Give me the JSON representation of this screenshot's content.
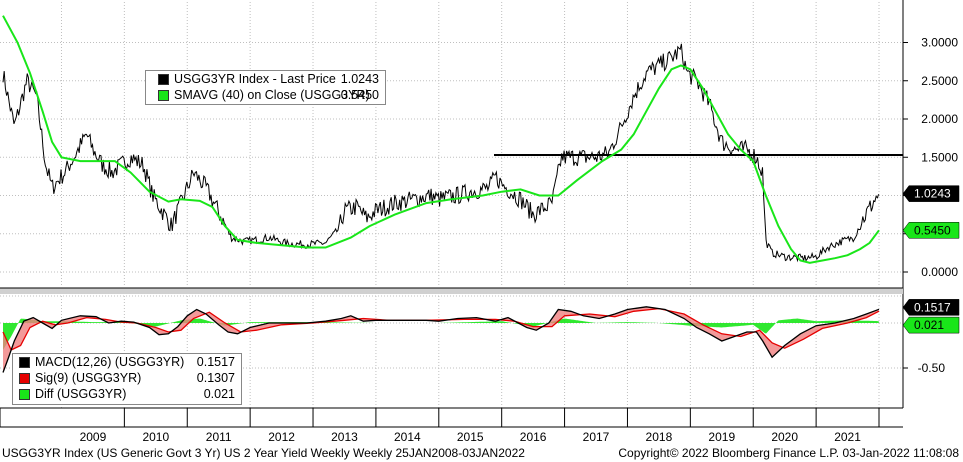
{
  "legend_main": {
    "items": [
      {
        "label": "USGG3YR Index  - Last Price",
        "value": "1.0243",
        "color": "#000000"
      },
      {
        "label": "SMAVG (40)  on Close (USGG3YR)",
        "value": "0.5450",
        "color": "#19e619"
      }
    ]
  },
  "legend_macd": {
    "items": [
      {
        "label": "MACD(12,26) (USGG3YR)",
        "value": "0.1517",
        "color": "#000000"
      },
      {
        "label": "Sig(9) (USGG3YR)",
        "value": "0.1307",
        "color": "#e60000"
      },
      {
        "label": "Diff (USGG3YR)",
        "value": "0.021",
        "color": "#19e619"
      }
    ]
  },
  "footer": {
    "left": "USGG3YR Index (US Generic Govt 3 Yr) US 2 Year Yield Weekly  Weekly 25JAN2008-03JAN2022",
    "right": "Copyright© 2022 Bloomberg Finance L.P.   03-Jan-2022 11:08:08"
  },
  "chart_data": [
    {
      "type": "line",
      "x_labels": [
        "2009",
        "2010",
        "2011",
        "2012",
        "2013",
        "2014",
        "2015",
        "2016",
        "2017",
        "2018",
        "2019",
        "2020",
        "2021"
      ],
      "ylim": [
        -0.15,
        3.4
      ],
      "y_ticks": [
        "3.0000",
        "2.5000",
        "2.0000",
        "1.5000",
        "1.0000",
        "0.5000",
        "0.0000"
      ],
      "reference_line": 1.53,
      "last_value_labels": [
        "1.0243",
        "0.5450"
      ],
      "series": [
        {
          "name": "USGG3YR Index  - Last Price",
          "color": "#000000",
          "x": [
            2008.07,
            2008.25,
            2008.45,
            2008.6,
            2008.75,
            2008.85,
            2008.95,
            2009.05,
            2009.2,
            2009.4,
            2009.5,
            2009.65,
            2009.8,
            2009.95,
            2010.1,
            2010.3,
            2010.45,
            2010.6,
            2010.75,
            2010.9,
            2011.0,
            2011.1,
            2011.3,
            2011.55,
            2011.7,
            2011.9,
            2012.1,
            2012.3,
            2012.6,
            2012.9,
            2013.2,
            2013.4,
            2013.5,
            2013.7,
            2013.85,
            2014.0,
            2014.3,
            2014.6,
            2014.85,
            2015.0,
            2015.3,
            2015.5,
            2015.8,
            2015.9,
            2016.0,
            2016.3,
            2016.5,
            2016.8,
            2016.95,
            2017.2,
            2017.5,
            2017.7,
            2017.9,
            2018.1,
            2018.3,
            2018.5,
            2018.7,
            2018.85,
            2018.95,
            2019.1,
            2019.3,
            2019.5,
            2019.7,
            2019.9,
            2020.05,
            2020.15,
            2020.2,
            2020.3,
            2020.5,
            2020.8,
            2021.0,
            2021.2,
            2021.4,
            2021.6,
            2021.75,
            2021.9,
            2022.0
          ],
          "y": [
            2.6,
            1.9,
            2.5,
            2.3,
            1.4,
            1.1,
            1.2,
            1.3,
            1.5,
            1.8,
            1.6,
            1.4,
            1.3,
            1.4,
            1.5,
            1.4,
            1.0,
            0.8,
            0.6,
            0.9,
            1.1,
            1.3,
            1.1,
            0.7,
            0.45,
            0.4,
            0.42,
            0.45,
            0.37,
            0.36,
            0.38,
            0.55,
            0.8,
            0.85,
            0.7,
            0.8,
            0.9,
            0.95,
            1.0,
            0.95,
            1.0,
            1.05,
            1.1,
            1.25,
            1.15,
            0.95,
            0.75,
            0.9,
            1.5,
            1.5,
            1.5,
            1.55,
            1.9,
            2.3,
            2.6,
            2.7,
            2.8,
            2.9,
            2.6,
            2.5,
            2.2,
            1.7,
            1.6,
            1.6,
            1.5,
            1.3,
            0.4,
            0.25,
            0.2,
            0.18,
            0.2,
            0.33,
            0.4,
            0.45,
            0.7,
            0.9,
            1.0243
          ]
        },
        {
          "name": "SMAVG (40)  on Close (USGG3YR)",
          "color": "#19e619",
          "x": [
            2008.07,
            2008.3,
            2008.5,
            2008.7,
            2008.85,
            2009.0,
            2009.3,
            2009.6,
            2009.85,
            2010.1,
            2010.4,
            2010.7,
            2010.9,
            2011.2,
            2011.4,
            2011.6,
            2011.8,
            2012.1,
            2012.5,
            2012.9,
            2013.2,
            2013.6,
            2013.9,
            2014.3,
            2014.8,
            2015.2,
            2015.7,
            2016.0,
            2016.3,
            2016.6,
            2016.9,
            2017.2,
            2017.6,
            2017.9,
            2018.1,
            2018.3,
            2018.5,
            2018.7,
            2018.85,
            2019.0,
            2019.2,
            2019.4,
            2019.6,
            2019.8,
            2020.0,
            2020.2,
            2020.4,
            2020.6,
            2020.75,
            2020.9,
            2021.1,
            2021.3,
            2021.5,
            2021.7,
            2021.85,
            2022.0
          ],
          "y": [
            3.35,
            3.0,
            2.6,
            2.1,
            1.7,
            1.5,
            1.45,
            1.45,
            1.45,
            1.3,
            1.05,
            0.92,
            0.95,
            0.93,
            0.85,
            0.6,
            0.42,
            0.38,
            0.35,
            0.32,
            0.32,
            0.45,
            0.6,
            0.75,
            0.9,
            0.95,
            1.0,
            1.05,
            1.08,
            1.0,
            1.0,
            1.2,
            1.45,
            1.6,
            1.8,
            2.1,
            2.4,
            2.65,
            2.7,
            2.65,
            2.4,
            2.1,
            1.8,
            1.6,
            1.45,
            1.0,
            0.6,
            0.3,
            0.15,
            0.12,
            0.15,
            0.18,
            0.22,
            0.3,
            0.38,
            0.545
          ]
        }
      ]
    },
    {
      "type": "line",
      "y_ticks": [
        "-0.50"
      ],
      "last_value_labels": [
        "0.1517",
        "0.021"
      ],
      "series": [
        {
          "name": "MACD(12,26) (USGG3YR)",
          "color": "#000000",
          "x": [
            2008.07,
            2008.15,
            2008.25,
            2008.4,
            2008.55,
            2008.7,
            2008.85,
            2009.0,
            2009.3,
            2009.55,
            2009.75,
            2009.95,
            2010.15,
            2010.4,
            2010.55,
            2010.7,
            2010.85,
            2011.0,
            2011.15,
            2011.3,
            2011.5,
            2011.65,
            2011.8,
            2012.0,
            2012.3,
            2012.6,
            2012.9,
            2013.2,
            2013.45,
            2013.6,
            2013.8,
            2014.0,
            2014.4,
            2014.8,
            2015.0,
            2015.3,
            2015.6,
            2015.9,
            2016.1,
            2016.4,
            2016.55,
            2016.75,
            2016.9,
            2017.1,
            2017.3,
            2017.55,
            2017.8,
            2018.0,
            2018.3,
            2018.6,
            2018.9,
            2019.1,
            2019.3,
            2019.5,
            2019.7,
            2019.9,
            2020.05,
            2020.15,
            2020.3,
            2020.5,
            2020.75,
            2021.0,
            2021.3,
            2021.6,
            2021.8,
            2022.0
          ],
          "y": [
            -0.55,
            -0.4,
            -0.2,
            0.02,
            0.06,
            0.0,
            -0.06,
            0.03,
            0.08,
            0.07,
            0.0,
            0.02,
            0.01,
            -0.05,
            -0.13,
            -0.12,
            -0.04,
            0.08,
            0.15,
            0.1,
            -0.02,
            -0.1,
            -0.12,
            -0.05,
            0.0,
            0.0,
            0.0,
            0.02,
            0.05,
            0.08,
            0.02,
            0.03,
            0.03,
            0.03,
            0.02,
            0.05,
            0.06,
            0.02,
            0.06,
            -0.05,
            -0.08,
            0.0,
            0.15,
            0.13,
            0.08,
            0.05,
            0.1,
            0.15,
            0.18,
            0.15,
            0.05,
            -0.05,
            -0.12,
            -0.2,
            -0.15,
            -0.1,
            -0.1,
            -0.2,
            -0.38,
            -0.25,
            -0.12,
            -0.03,
            0.0,
            0.05,
            0.1,
            0.1517
          ]
        },
        {
          "name": "Sig(9) (USGG3YR)",
          "color": "#e60000",
          "x": [
            2008.07,
            2008.2,
            2008.35,
            2008.5,
            2008.7,
            2008.9,
            2009.1,
            2009.4,
            2009.7,
            2009.95,
            2010.2,
            2010.5,
            2010.7,
            2010.9,
            2011.1,
            2011.35,
            2011.6,
            2011.85,
            2012.1,
            2012.5,
            2013.0,
            2013.5,
            2013.8,
            2014.2,
            2014.8,
            2015.4,
            2015.9,
            2016.2,
            2016.5,
            2016.8,
            2017.0,
            2017.4,
            2017.8,
            2018.1,
            2018.5,
            2018.9,
            2019.2,
            2019.5,
            2019.8,
            2020.1,
            2020.3,
            2020.5,
            2020.8,
            2021.1,
            2021.5,
            2021.8,
            2022.0
          ],
          "y": [
            -0.1,
            -0.3,
            -0.25,
            -0.05,
            0.02,
            -0.02,
            0.0,
            0.06,
            0.04,
            0.01,
            0.0,
            -0.05,
            -0.1,
            -0.08,
            0.05,
            0.12,
            0.0,
            -0.1,
            -0.08,
            -0.02,
            0.0,
            0.03,
            0.05,
            0.03,
            0.03,
            0.04,
            0.04,
            0.02,
            -0.04,
            -0.04,
            0.08,
            0.1,
            0.07,
            0.13,
            0.16,
            0.1,
            -0.02,
            -0.12,
            -0.15,
            -0.08,
            -0.22,
            -0.28,
            -0.18,
            -0.06,
            0.0,
            0.06,
            0.1307
          ]
        },
        {
          "name": "Diff (USGG3YR)",
          "color": "#19e619",
          "x": [
            2008.07,
            2008.2,
            2008.35,
            2008.5,
            2008.7,
            2009.0,
            2009.5,
            2010.0,
            2010.5,
            2010.9,
            2011.2,
            2011.6,
            2012.0,
            2013.0,
            2014.0,
            2015.0,
            2016.0,
            2016.5,
            2017.0,
            2017.5,
            2018.0,
            2018.5,
            2019.0,
            2019.5,
            2020.0,
            2020.2,
            2020.4,
            2020.7,
            2021.0,
            2021.5,
            2022.0
          ],
          "y": [
            -0.3,
            -0.15,
            0.05,
            0.04,
            0.02,
            0.02,
            0.01,
            0.01,
            -0.04,
            0.03,
            0.05,
            -0.03,
            0.01,
            0.01,
            0.0,
            0.0,
            0.02,
            -0.04,
            0.05,
            0.0,
            0.01,
            0.0,
            -0.03,
            -0.05,
            -0.02,
            -0.12,
            0.03,
            0.05,
            0.02,
            0.03,
            0.021
          ]
        }
      ]
    }
  ]
}
